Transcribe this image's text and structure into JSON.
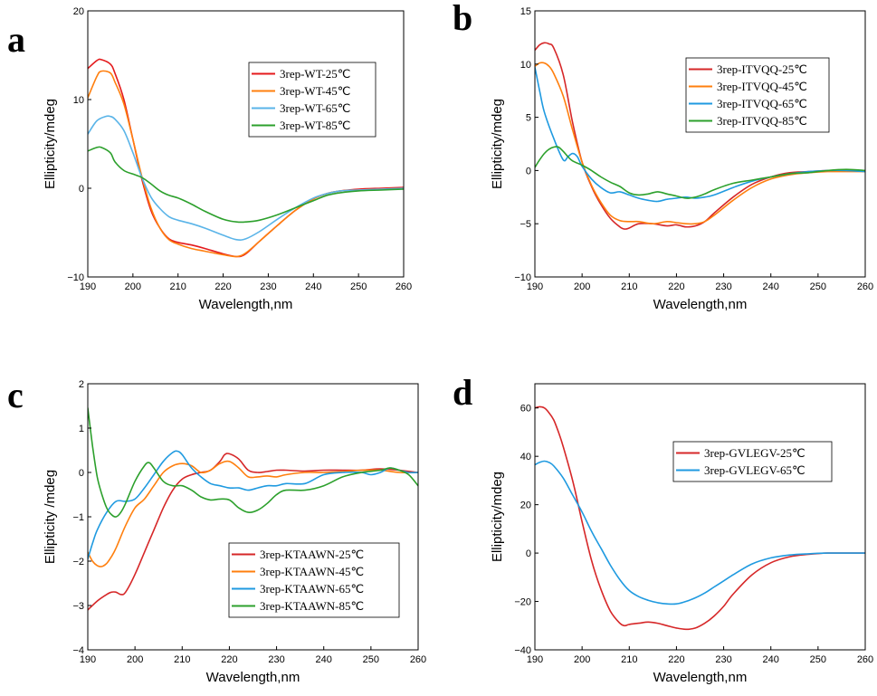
{
  "chart_data": [
    {
      "panel": "a",
      "type": "line",
      "xlabel": "Wavelength,nm",
      "ylabel": "Ellipticity/mdeg",
      "xlim": [
        190,
        260
      ],
      "ylim": [
        -10,
        20
      ],
      "xticks": [
        190,
        200,
        210,
        220,
        230,
        240,
        250,
        260
      ],
      "yticks": [
        -10,
        0,
        10,
        20
      ],
      "yticklabels": [
        "−10",
        "0",
        "10",
        "20"
      ],
      "legend_position": "top-right",
      "series": [
        {
          "name": "3rep-WT-25℃",
          "color": "#e41a1c",
          "x": [
            190,
            192,
            193,
            195,
            196,
            198,
            200,
            202,
            204,
            206,
            208,
            210,
            213,
            216,
            220,
            223,
            225,
            228,
            232,
            236,
            240,
            243,
            246,
            250,
            255,
            260
          ],
          "y": [
            13.5,
            14.4,
            14.5,
            14.0,
            13.0,
            10.0,
            5.5,
            1.0,
            -2.5,
            -4.5,
            -5.7,
            -6.1,
            -6.4,
            -6.8,
            -7.4,
            -7.7,
            -7.4,
            -6.0,
            -4.2,
            -2.5,
            -1.2,
            -0.6,
            -0.3,
            -0.1,
            0.0,
            0.1
          ]
        },
        {
          "name": "3rep-WT-45℃",
          "color": "#ff7f0e",
          "x": [
            190,
            192,
            193,
            195,
            196,
            198,
            200,
            202,
            204,
            206,
            208,
            210,
            213,
            216,
            220,
            223,
            225,
            228,
            232,
            236,
            240,
            243,
            246,
            250,
            255,
            260
          ],
          "y": [
            10.2,
            12.6,
            13.2,
            13.0,
            12.0,
            9.5,
            5.5,
            1.3,
            -2.2,
            -4.5,
            -5.8,
            -6.3,
            -6.8,
            -7.1,
            -7.5,
            -7.7,
            -7.3,
            -6.0,
            -4.2,
            -2.5,
            -1.2,
            -0.6,
            -0.3,
            -0.2,
            -0.1,
            0.0
          ]
        },
        {
          "name": "3rep-WT-65℃",
          "color": "#5ab4e8",
          "x": [
            190,
            192,
            194,
            195,
            196,
            198,
            200,
            202,
            204,
            206,
            208,
            210,
            213,
            216,
            220,
            223,
            225,
            228,
            232,
            236,
            240,
            243,
            246,
            250,
            255,
            260
          ],
          "y": [
            6.1,
            7.6,
            8.1,
            8.1,
            7.8,
            6.5,
            4.0,
            1.2,
            -1.0,
            -2.3,
            -3.2,
            -3.6,
            -4.0,
            -4.5,
            -5.3,
            -5.8,
            -5.7,
            -4.9,
            -3.5,
            -2.2,
            -1.1,
            -0.6,
            -0.3,
            -0.2,
            -0.1,
            0.0
          ]
        },
        {
          "name": "3rep-WT-85℃",
          "color": "#2ca02c",
          "x": [
            190,
            192,
            193,
            195,
            196,
            198,
            200,
            202,
            204,
            206,
            208,
            210,
            213,
            216,
            220,
            223,
            225,
            228,
            232,
            236,
            240,
            243,
            246,
            250,
            255,
            260
          ],
          "y": [
            4.2,
            4.6,
            4.6,
            4.0,
            3.0,
            2.0,
            1.6,
            1.2,
            0.5,
            -0.3,
            -0.8,
            -1.1,
            -1.8,
            -2.6,
            -3.5,
            -3.8,
            -3.8,
            -3.6,
            -3.0,
            -2.2,
            -1.4,
            -0.8,
            -0.5,
            -0.3,
            -0.2,
            -0.1
          ]
        }
      ]
    },
    {
      "panel": "b",
      "type": "line",
      "xlabel": "Wavelength,nm",
      "ylabel": "Ellipticity/mdeg",
      "xlim": [
        190,
        260
      ],
      "ylim": [
        -10,
        15
      ],
      "xticks": [
        190,
        200,
        210,
        220,
        230,
        240,
        250,
        260
      ],
      "yticks": [
        -10,
        -5,
        0,
        5,
        10,
        15
      ],
      "yticklabels": [
        "−10",
        "−5",
        "0",
        "5",
        "10",
        "15"
      ],
      "legend_position": "top-right",
      "series": [
        {
          "name": "3rep-ITVQQ-25℃",
          "color": "#d62728",
          "x": [
            190,
            191,
            192,
            193,
            194,
            196,
            198,
            200,
            202,
            204,
            206,
            208,
            209,
            210,
            212,
            215,
            218,
            220,
            222,
            224,
            226,
            228,
            232,
            236,
            240,
            244,
            248,
            252,
            256,
            260
          ],
          "y": [
            11.3,
            11.8,
            12.0,
            11.9,
            11.5,
            9.0,
            4.5,
            0.8,
            -1.5,
            -3.2,
            -4.5,
            -5.3,
            -5.5,
            -5.4,
            -5.0,
            -5.0,
            -5.2,
            -5.1,
            -5.3,
            -5.2,
            -4.8,
            -4.0,
            -2.5,
            -1.3,
            -0.6,
            -0.2,
            -0.1,
            0.0,
            0.0,
            -0.1
          ]
        },
        {
          "name": "3rep-ITVQQ-45℃",
          "color": "#ff7f0e",
          "x": [
            190,
            191,
            192,
            193,
            194,
            196,
            198,
            200,
            202,
            204,
            206,
            208,
            210,
            212,
            215,
            218,
            220,
            222,
            224,
            226,
            228,
            232,
            236,
            240,
            244,
            248,
            252,
            256,
            260
          ],
          "y": [
            9.8,
            10.1,
            10.1,
            9.8,
            9.1,
            7.0,
            3.8,
            0.8,
            -1.4,
            -3.0,
            -4.2,
            -4.7,
            -4.8,
            -4.8,
            -5.0,
            -4.8,
            -4.9,
            -5.0,
            -5.0,
            -4.8,
            -4.2,
            -2.8,
            -1.6,
            -0.8,
            -0.4,
            -0.2,
            -0.1,
            -0.1,
            -0.1
          ]
        },
        {
          "name": "3rep-ITVQQ-65℃",
          "color": "#1f9ae0",
          "x": [
            190,
            191,
            192,
            194,
            196,
            197,
            198,
            199,
            200,
            202,
            204,
            206,
            208,
            210,
            212,
            214,
            216,
            218,
            220,
            222,
            224,
            226,
            228,
            232,
            236,
            240,
            244,
            248,
            252,
            256,
            260
          ],
          "y": [
            9.7,
            7.5,
            5.5,
            3.0,
            1.0,
            1.3,
            1.6,
            1.3,
            0.4,
            -0.8,
            -1.6,
            -2.1,
            -2.0,
            -2.3,
            -2.6,
            -2.8,
            -2.9,
            -2.7,
            -2.6,
            -2.5,
            -2.6,
            -2.5,
            -2.3,
            -1.6,
            -1.0,
            -0.6,
            -0.3,
            -0.1,
            0.0,
            0.0,
            -0.1
          ]
        },
        {
          "name": "3rep-ITVQQ-85℃",
          "color": "#2ca02c",
          "x": [
            190,
            191,
            192,
            193,
            194,
            195,
            196,
            197,
            198,
            200,
            202,
            204,
            206,
            208,
            210,
            212,
            214,
            216,
            218,
            220,
            222,
            224,
            226,
            228,
            232,
            236,
            240,
            244,
            248,
            252,
            256,
            260
          ],
          "y": [
            0.3,
            1.0,
            1.6,
            2.0,
            2.2,
            2.2,
            1.8,
            1.3,
            0.9,
            0.5,
            0.0,
            -0.6,
            -1.1,
            -1.5,
            -2.1,
            -2.3,
            -2.2,
            -2.0,
            -2.2,
            -2.4,
            -2.6,
            -2.5,
            -2.2,
            -1.8,
            -1.2,
            -0.9,
            -0.6,
            -0.3,
            -0.2,
            0.0,
            0.1,
            0.0
          ]
        }
      ]
    },
    {
      "panel": "c",
      "type": "line",
      "xlabel": "Wavelength,nm",
      "ylabel": "Ellipticity /mdeg",
      "xlim": [
        190,
        260
      ],
      "ylim": [
        -4,
        2
      ],
      "xticks": [
        190,
        200,
        210,
        220,
        230,
        240,
        250,
        260
      ],
      "yticks": [
        -4,
        -3,
        -2,
        -1,
        0,
        1,
        2
      ],
      "yticklabels": [
        "−4",
        "−3",
        "−2",
        "−1",
        "0",
        "1",
        "2"
      ],
      "legend_position": "bottom-right",
      "series": [
        {
          "name": "3rep-KTAAWN-25℃",
          "color": "#d62728",
          "x": [
            190,
            192,
            194,
            195,
            196,
            197,
            198,
            200,
            202,
            204,
            206,
            208,
            210,
            212,
            214,
            216,
            218,
            219,
            220,
            222,
            224,
            226,
            228,
            230,
            232,
            236,
            240,
            244,
            248,
            252,
            256,
            260
          ],
          "y": [
            -3.1,
            -2.9,
            -2.75,
            -2.7,
            -2.7,
            -2.75,
            -2.7,
            -2.3,
            -1.8,
            -1.3,
            -0.8,
            -0.4,
            -0.15,
            -0.05,
            0.0,
            0.05,
            0.25,
            0.4,
            0.42,
            0.3,
            0.05,
            0.0,
            0.02,
            0.05,
            0.05,
            0.03,
            0.05,
            0.05,
            0.05,
            0.08,
            0.05,
            0.0
          ]
        },
        {
          "name": "3rep-KTAAWN-45℃",
          "color": "#ff7f0e",
          "x": [
            190,
            191,
            192,
            193,
            194,
            195,
            196,
            198,
            200,
            202,
            204,
            206,
            208,
            210,
            212,
            214,
            216,
            218,
            220,
            222,
            224,
            226,
            228,
            230,
            232,
            236,
            240,
            244,
            248,
            252,
            256,
            260
          ],
          "y": [
            -1.8,
            -2.0,
            -2.1,
            -2.12,
            -2.05,
            -1.9,
            -1.7,
            -1.2,
            -0.8,
            -0.6,
            -0.3,
            0.0,
            0.15,
            0.2,
            0.15,
            0.0,
            0.05,
            0.2,
            0.25,
            0.1,
            -0.1,
            -0.1,
            -0.08,
            -0.1,
            -0.05,
            0.0,
            0.0,
            0.02,
            0.05,
            0.05,
            0.0,
            0.0
          ]
        },
        {
          "name": "3rep-KTAAWN-65℃",
          "color": "#1f9ae0",
          "x": [
            190,
            191,
            192,
            194,
            196,
            198,
            200,
            202,
            204,
            206,
            208,
            209,
            210,
            212,
            214,
            216,
            218,
            220,
            222,
            224,
            226,
            228,
            230,
            232,
            236,
            240,
            244,
            248,
            250,
            252,
            254,
            256,
            258,
            260
          ],
          "y": [
            -1.95,
            -1.6,
            -1.3,
            -0.9,
            -0.65,
            -0.65,
            -0.6,
            -0.35,
            -0.05,
            0.25,
            0.45,
            0.48,
            0.4,
            0.1,
            -0.1,
            -0.25,
            -0.3,
            -0.35,
            -0.35,
            -0.4,
            -0.35,
            -0.3,
            -0.3,
            -0.25,
            -0.25,
            -0.05,
            0.0,
            0.0,
            -0.05,
            0.0,
            0.1,
            0.05,
            0.0,
            0.0
          ]
        },
        {
          "name": "3rep-KTAAWN-85℃",
          "color": "#2ca02c",
          "x": [
            190,
            191,
            192,
            193,
            194,
            195,
            196,
            197,
            198,
            200,
            202,
            203,
            204,
            206,
            208,
            210,
            212,
            214,
            216,
            218,
            220,
            222,
            224,
            226,
            228,
            230,
            232,
            236,
            240,
            244,
            248,
            252,
            254,
            256,
            258,
            260
          ],
          "y": [
            1.45,
            0.6,
            -0.1,
            -0.5,
            -0.8,
            -0.95,
            -1.0,
            -0.9,
            -0.7,
            -0.2,
            0.15,
            0.22,
            0.1,
            -0.2,
            -0.3,
            -0.3,
            -0.4,
            -0.55,
            -0.62,
            -0.6,
            -0.62,
            -0.8,
            -0.9,
            -0.85,
            -0.7,
            -0.5,
            -0.4,
            -0.4,
            -0.3,
            -0.1,
            0.0,
            0.05,
            0.1,
            0.05,
            -0.05,
            -0.3
          ]
        }
      ]
    },
    {
      "panel": "d",
      "type": "line",
      "xlabel": "Wavelength,nm",
      "ylabel": "Ellipticity/mdeg",
      "xlim": [
        190,
        260
      ],
      "ylim": [
        -40,
        70
      ],
      "xticks": [
        190,
        200,
        210,
        220,
        230,
        240,
        250,
        260
      ],
      "yticks": [
        -40,
        -20,
        0,
        20,
        40,
        60
      ],
      "yticklabels": [
        "−40",
        "−20",
        "0",
        "20",
        "40",
        "60"
      ],
      "legend_position": "top-right",
      "series": [
        {
          "name": "3rep-GVLEGV-25℃",
          "color": "#d62728",
          "x": [
            190,
            191,
            192,
            193,
            194,
            195,
            196,
            198,
            200,
            202,
            204,
            206,
            208,
            209,
            210,
            212,
            214,
            216,
            218,
            220,
            222,
            224,
            226,
            228,
            230,
            232,
            236,
            240,
            244,
            248,
            252,
            256,
            260
          ],
          "y": [
            60.0,
            60.5,
            60.0,
            58.0,
            55.0,
            50.0,
            44.0,
            30.0,
            13.0,
            -3.0,
            -15.0,
            -24.0,
            -29.0,
            -30.0,
            -29.5,
            -29.0,
            -28.5,
            -29.0,
            -30.0,
            -31.0,
            -31.5,
            -31.0,
            -29.0,
            -26.0,
            -22.0,
            -17.0,
            -9.0,
            -4.0,
            -1.5,
            -0.5,
            0.0,
            0.0,
            0.0
          ]
        },
        {
          "name": "3rep-GVLEGV-65℃",
          "color": "#1f9ae0",
          "x": [
            190,
            191,
            192,
            193,
            194,
            196,
            198,
            200,
            202,
            204,
            206,
            208,
            210,
            212,
            214,
            216,
            218,
            220,
            222,
            224,
            226,
            228,
            230,
            232,
            236,
            240,
            244,
            248,
            252,
            256,
            260
          ],
          "y": [
            36.5,
            37.5,
            38.0,
            37.5,
            36.0,
            31.0,
            24.0,
            17.0,
            9.0,
            2.0,
            -5.0,
            -11.0,
            -15.5,
            -18.0,
            -19.5,
            -20.5,
            -21.0,
            -21.0,
            -20.0,
            -18.5,
            -16.5,
            -14.0,
            -11.5,
            -9.0,
            -4.5,
            -2.0,
            -0.8,
            -0.3,
            0.0,
            0.0,
            0.0
          ]
        }
      ]
    }
  ]
}
